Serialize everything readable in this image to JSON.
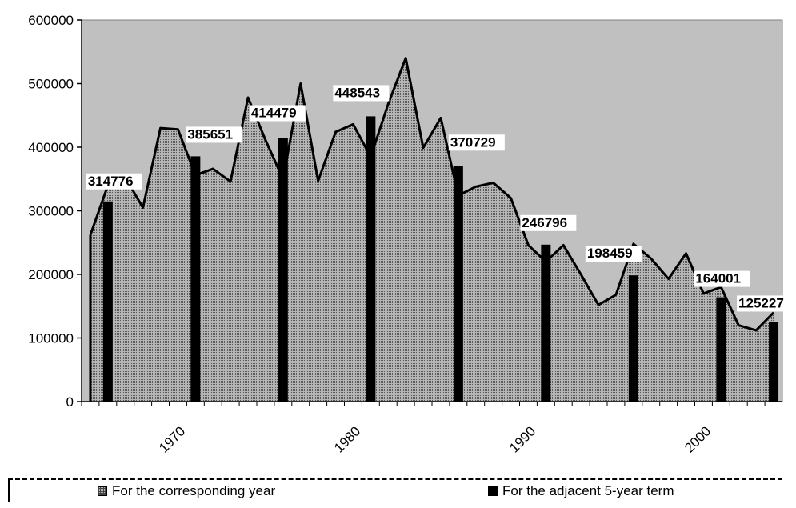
{
  "chart_data": {
    "type": "area",
    "ylim": [
      0,
      600000
    ],
    "xlim": [
      1964.5,
      2004.5
    ],
    "y_ticks": [
      0,
      100000,
      200000,
      300000,
      400000,
      500000,
      600000
    ],
    "x_ticks": [
      1970,
      1980,
      1990,
      2000
    ],
    "grid": false,
    "legend_position": "bottom",
    "colors": {
      "plot_bg": "#c0c0c0",
      "area_fill": "#a8a8a8",
      "bar": "#000000",
      "line": "#000000"
    },
    "series": [
      {
        "name": "For the corresponding year",
        "type": "area",
        "x": [
          1965,
          1966,
          1967,
          1968,
          1969,
          1970,
          1971,
          1972,
          1973,
          1974,
          1975,
          1976,
          1977,
          1978,
          1979,
          1980,
          1981,
          1982,
          1983,
          1984,
          1985,
          1986,
          1987,
          1988,
          1989,
          1990,
          1991,
          1992,
          1993,
          1994,
          1995,
          1996,
          1997,
          1998,
          1999,
          2000,
          2001,
          2002,
          2003,
          2004
        ],
        "values": [
          262000,
          340000,
          352000,
          305000,
          430000,
          428000,
          356000,
          366000,
          346000,
          478000,
          411000,
          350000,
          500000,
          347000,
          424000,
          436000,
          385000,
          468000,
          540000,
          399000,
          446000,
          324000,
          338000,
          344000,
          320000,
          246000,
          220000,
          246000,
          200000,
          152000,
          168000,
          248000,
          225000,
          193000,
          233000,
          170000,
          180000,
          120000,
          112000,
          140000
        ]
      },
      {
        "name": "For the adjacent 5-year term",
        "type": "bar",
        "x": [
          1966,
          1971,
          1976,
          1981,
          1986,
          1991,
          1996,
          2001,
          2004
        ],
        "values": [
          314776,
          385651,
          414479,
          448543,
          370729,
          246796,
          198459,
          164001,
          125227
        ],
        "labels": [
          "314776",
          "385651",
          "414479",
          "448543",
          "370729",
          "246796",
          "198459",
          "164001",
          "125227"
        ]
      }
    ]
  },
  "legend": {
    "area_label": "For the corresponding year",
    "bar_label": "For the adjacent 5-year term"
  }
}
